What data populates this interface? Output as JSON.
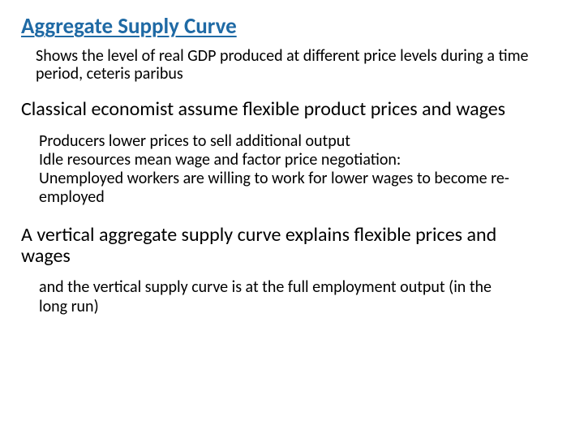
{
  "title_color": "#1f6aa5",
  "body_color": "#000000",
  "background_color": "#ffffff",
  "title": "Aggregate Supply Curve",
  "intro": "Shows the level of real GDP produced at different price levels during a time period, ceteris paribus",
  "heading1": "Classical economist assume flexible product prices and wages",
  "body1_line1": "Producers lower prices to sell additional output",
  "body1_line2": "Idle resources mean wage and factor price negotiation:",
  "body1_line3": "Unemployed workers are willing to work for lower wages to become re-employed",
  "heading2": "A vertical aggregate supply curve explains flexible prices and wages",
  "body2": "and the vertical supply curve is at the full employment output (in the long run)"
}
